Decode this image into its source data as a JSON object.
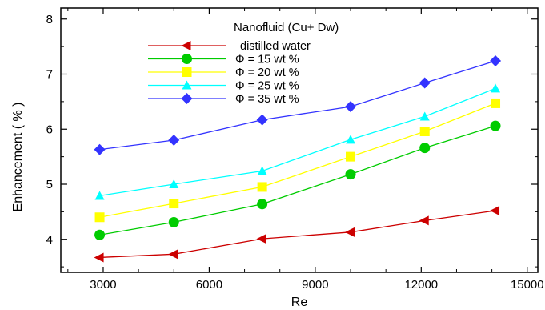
{
  "chart_data": {
    "type": "line",
    "title": "",
    "xlabel": "Re",
    "ylabel": "Enhancement  ( % )",
    "xlim": [
      1800,
      15300
    ],
    "ylim": [
      3.4,
      8.2
    ],
    "x_ticks": [
      3000,
      6000,
      9000,
      12000,
      15000
    ],
    "y_ticks": [
      4,
      5,
      6,
      7,
      8
    ],
    "x_tick_labels": [
      "3000",
      "6000",
      "9000",
      "12000",
      "15000"
    ],
    "y_tick_labels": [
      "4",
      "5",
      "6",
      "7",
      "8"
    ],
    "grid": false,
    "legend": {
      "title": "Nanofluid (Cu+ Dw)",
      "position": "top-center"
    },
    "x": [
      2900,
      5000,
      7500,
      10000,
      12100,
      14100
    ],
    "series": [
      {
        "name": "distilled water",
        "marker": "triangle-left",
        "color": "#cc0000",
        "values": [
          3.67,
          3.73,
          4.01,
          4.13,
          4.34,
          4.52
        ]
      },
      {
        "name": "Φ = 15 wt %",
        "marker": "circle",
        "color": "#00cc00",
        "values": [
          4.08,
          4.31,
          4.64,
          5.18,
          5.66,
          6.06
        ]
      },
      {
        "name": "Φ = 20 wt %",
        "marker": "square",
        "color": "#ffff00",
        "values": [
          4.4,
          4.65,
          4.95,
          5.5,
          5.96,
          6.47
        ]
      },
      {
        "name": "Φ = 25 wt %",
        "marker": "triangle-up",
        "color": "#00ffff",
        "values": [
          4.79,
          5.0,
          5.24,
          5.81,
          6.23,
          6.74
        ]
      },
      {
        "name": "Φ = 35 wt %",
        "marker": "diamond",
        "color": "#3333ff",
        "values": [
          5.63,
          5.8,
          6.17,
          6.41,
          6.84,
          7.24
        ]
      }
    ]
  }
}
